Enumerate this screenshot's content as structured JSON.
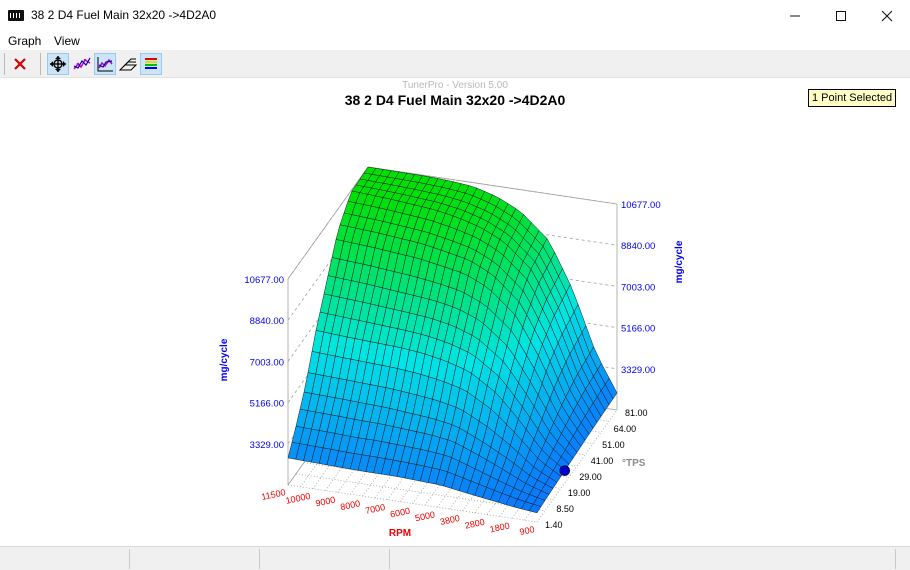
{
  "window": {
    "title": "38 2 D4 Fuel Main 32x20 ->4D2A0",
    "minimize_icon": "minimize-icon",
    "maximize_icon": "maximize-icon",
    "close_icon": "close-icon"
  },
  "menu": {
    "items": [
      {
        "label": "Graph"
      },
      {
        "label": "View"
      }
    ]
  },
  "toolbar": {
    "buttons": [
      {
        "icon": "close-red-x-icon",
        "active": false
      },
      {
        "icon": "move-cross-icon",
        "active": true
      },
      {
        "icon": "line-graph-icon",
        "active": false
      },
      {
        "icon": "3d-graph-icon",
        "active": true
      },
      {
        "icon": "wireframe-icon",
        "active": false
      },
      {
        "icon": "color-bars-icon",
        "active": true
      }
    ]
  },
  "selection_badge": "1 Point Selected",
  "watermark": "TunerPro - Version 5.00",
  "colors": {
    "axis_blue": "#0000ee",
    "axis_red": "#ee0000",
    "tps_label": "#8a8a8a",
    "surface_high": "#00e000",
    "surface_mid": "#00e5e5",
    "surface_low": "#0a6cff",
    "selected_point": "#0000cc"
  },
  "chart_data": {
    "type": "surface3d",
    "title": "38 2 D4 Fuel Main 32x20 ->4D2A0",
    "xlabel": "RPM",
    "ylabel": "°TPS",
    "zlabel": "mg/cycle",
    "x_ticks": [
      "11500",
      "10000",
      "9000",
      "8000",
      "7000",
      "6000",
      "5000",
      "3800",
      "2800",
      "1800",
      "900"
    ],
    "y_ticks": [
      "1.40",
      "8.50",
      "19.00",
      "29.00",
      "41.00",
      "51.00",
      "64.00",
      "81.00"
    ],
    "z_ticks": [
      "3329.00",
      "5166.00",
      "7003.00",
      "8840.00",
      "10677.00"
    ],
    "zlim": [
      1492,
      10677
    ],
    "rpm_axis": [
      900,
      1800,
      2800,
      3800,
      5000,
      6000,
      7000,
      8000,
      9000,
      10000,
      11500
    ],
    "tps_axis": [
      1.4,
      8.5,
      19,
      29,
      41,
      51,
      64,
      81
    ],
    "fuel_mg_per_cycle": [
      [
        1900,
        2000,
        2150,
        2300,
        2500,
        2550,
        2600,
        2600,
        2620,
        2650,
        2700
      ],
      [
        1950,
        2150,
        2450,
        2800,
        3200,
        3300,
        3350,
        3400,
        3400,
        3450,
        3500
      ],
      [
        2000,
        2400,
        3100,
        3700,
        4300,
        4500,
        4600,
        4700,
        4750,
        4800,
        4850
      ],
      [
        2050,
        2700,
        3900,
        5000,
        5800,
        6100,
        6300,
        6400,
        6450,
        6500,
        6600
      ],
      [
        2100,
        3100,
        4800,
        6300,
        7300,
        7700,
        7900,
        8000,
        8100,
        8200,
        8300
      ],
      [
        2150,
        3400,
        5600,
        7400,
        8500,
        9000,
        9200,
        9400,
        9500,
        9600,
        9700
      ],
      [
        2200,
        3700,
        6200,
        8200,
        9300,
        9800,
        10100,
        10300,
        10400,
        10500,
        10600
      ],
      [
        2250,
        3900,
        6600,
        8600,
        9700,
        10200,
        10500,
        10600,
        10650,
        10660,
        10677
      ]
    ],
    "selected_point": {
      "rpm": 900,
      "tps": 29.0
    }
  }
}
